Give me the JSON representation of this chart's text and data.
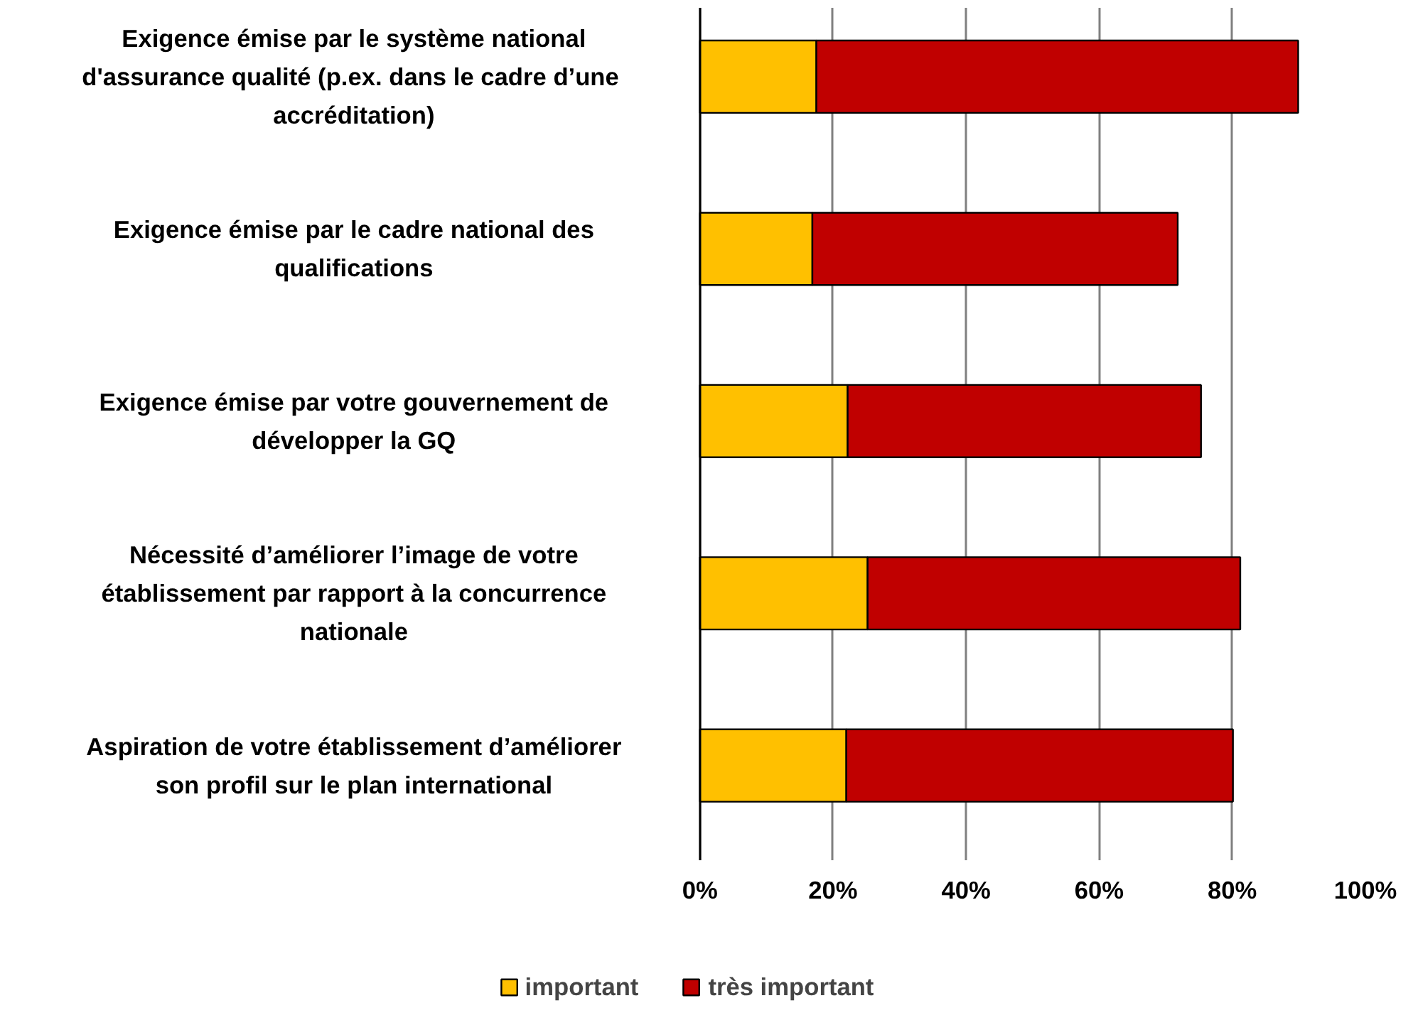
{
  "chart_data": {
    "type": "bar",
    "orientation": "horizontal",
    "stacked": true,
    "categories": [
      "Exigence émise par le système national\nd'assurance qualité  (p.ex. dans le cadre d’une\naccréditation)",
      "Exigence émise par le cadre national des\nqualifications",
      "Exigence émise par votre gouvernement de\ndévelopper la GQ",
      "Nécessité d’améliorer l’image de votre\nétablissement par rapport à la concurrence\nnationale",
      "Aspiration de votre établissement d’améliorer\nson profil sur le plan international"
    ],
    "series": [
      {
        "name": "important",
        "color": "#ffc000",
        "values": [
          17.5,
          16.9,
          22.2,
          25.2,
          22.0
        ]
      },
      {
        "name": "très important",
        "color": "#c00000",
        "values": [
          72.4,
          54.9,
          53.1,
          56.0,
          58.1
        ]
      }
    ],
    "xlim": [
      0,
      100
    ],
    "xticks": [
      {
        "value": 0,
        "label": "0%"
      },
      {
        "value": 20,
        "label": "20%"
      },
      {
        "value": 40,
        "label": "40%"
      },
      {
        "value": 60,
        "label": "60%"
      },
      {
        "value": 80,
        "label": "80%"
      },
      {
        "value": 100,
        "label": "100%"
      }
    ],
    "grid": "x",
    "legend": "bottom"
  }
}
